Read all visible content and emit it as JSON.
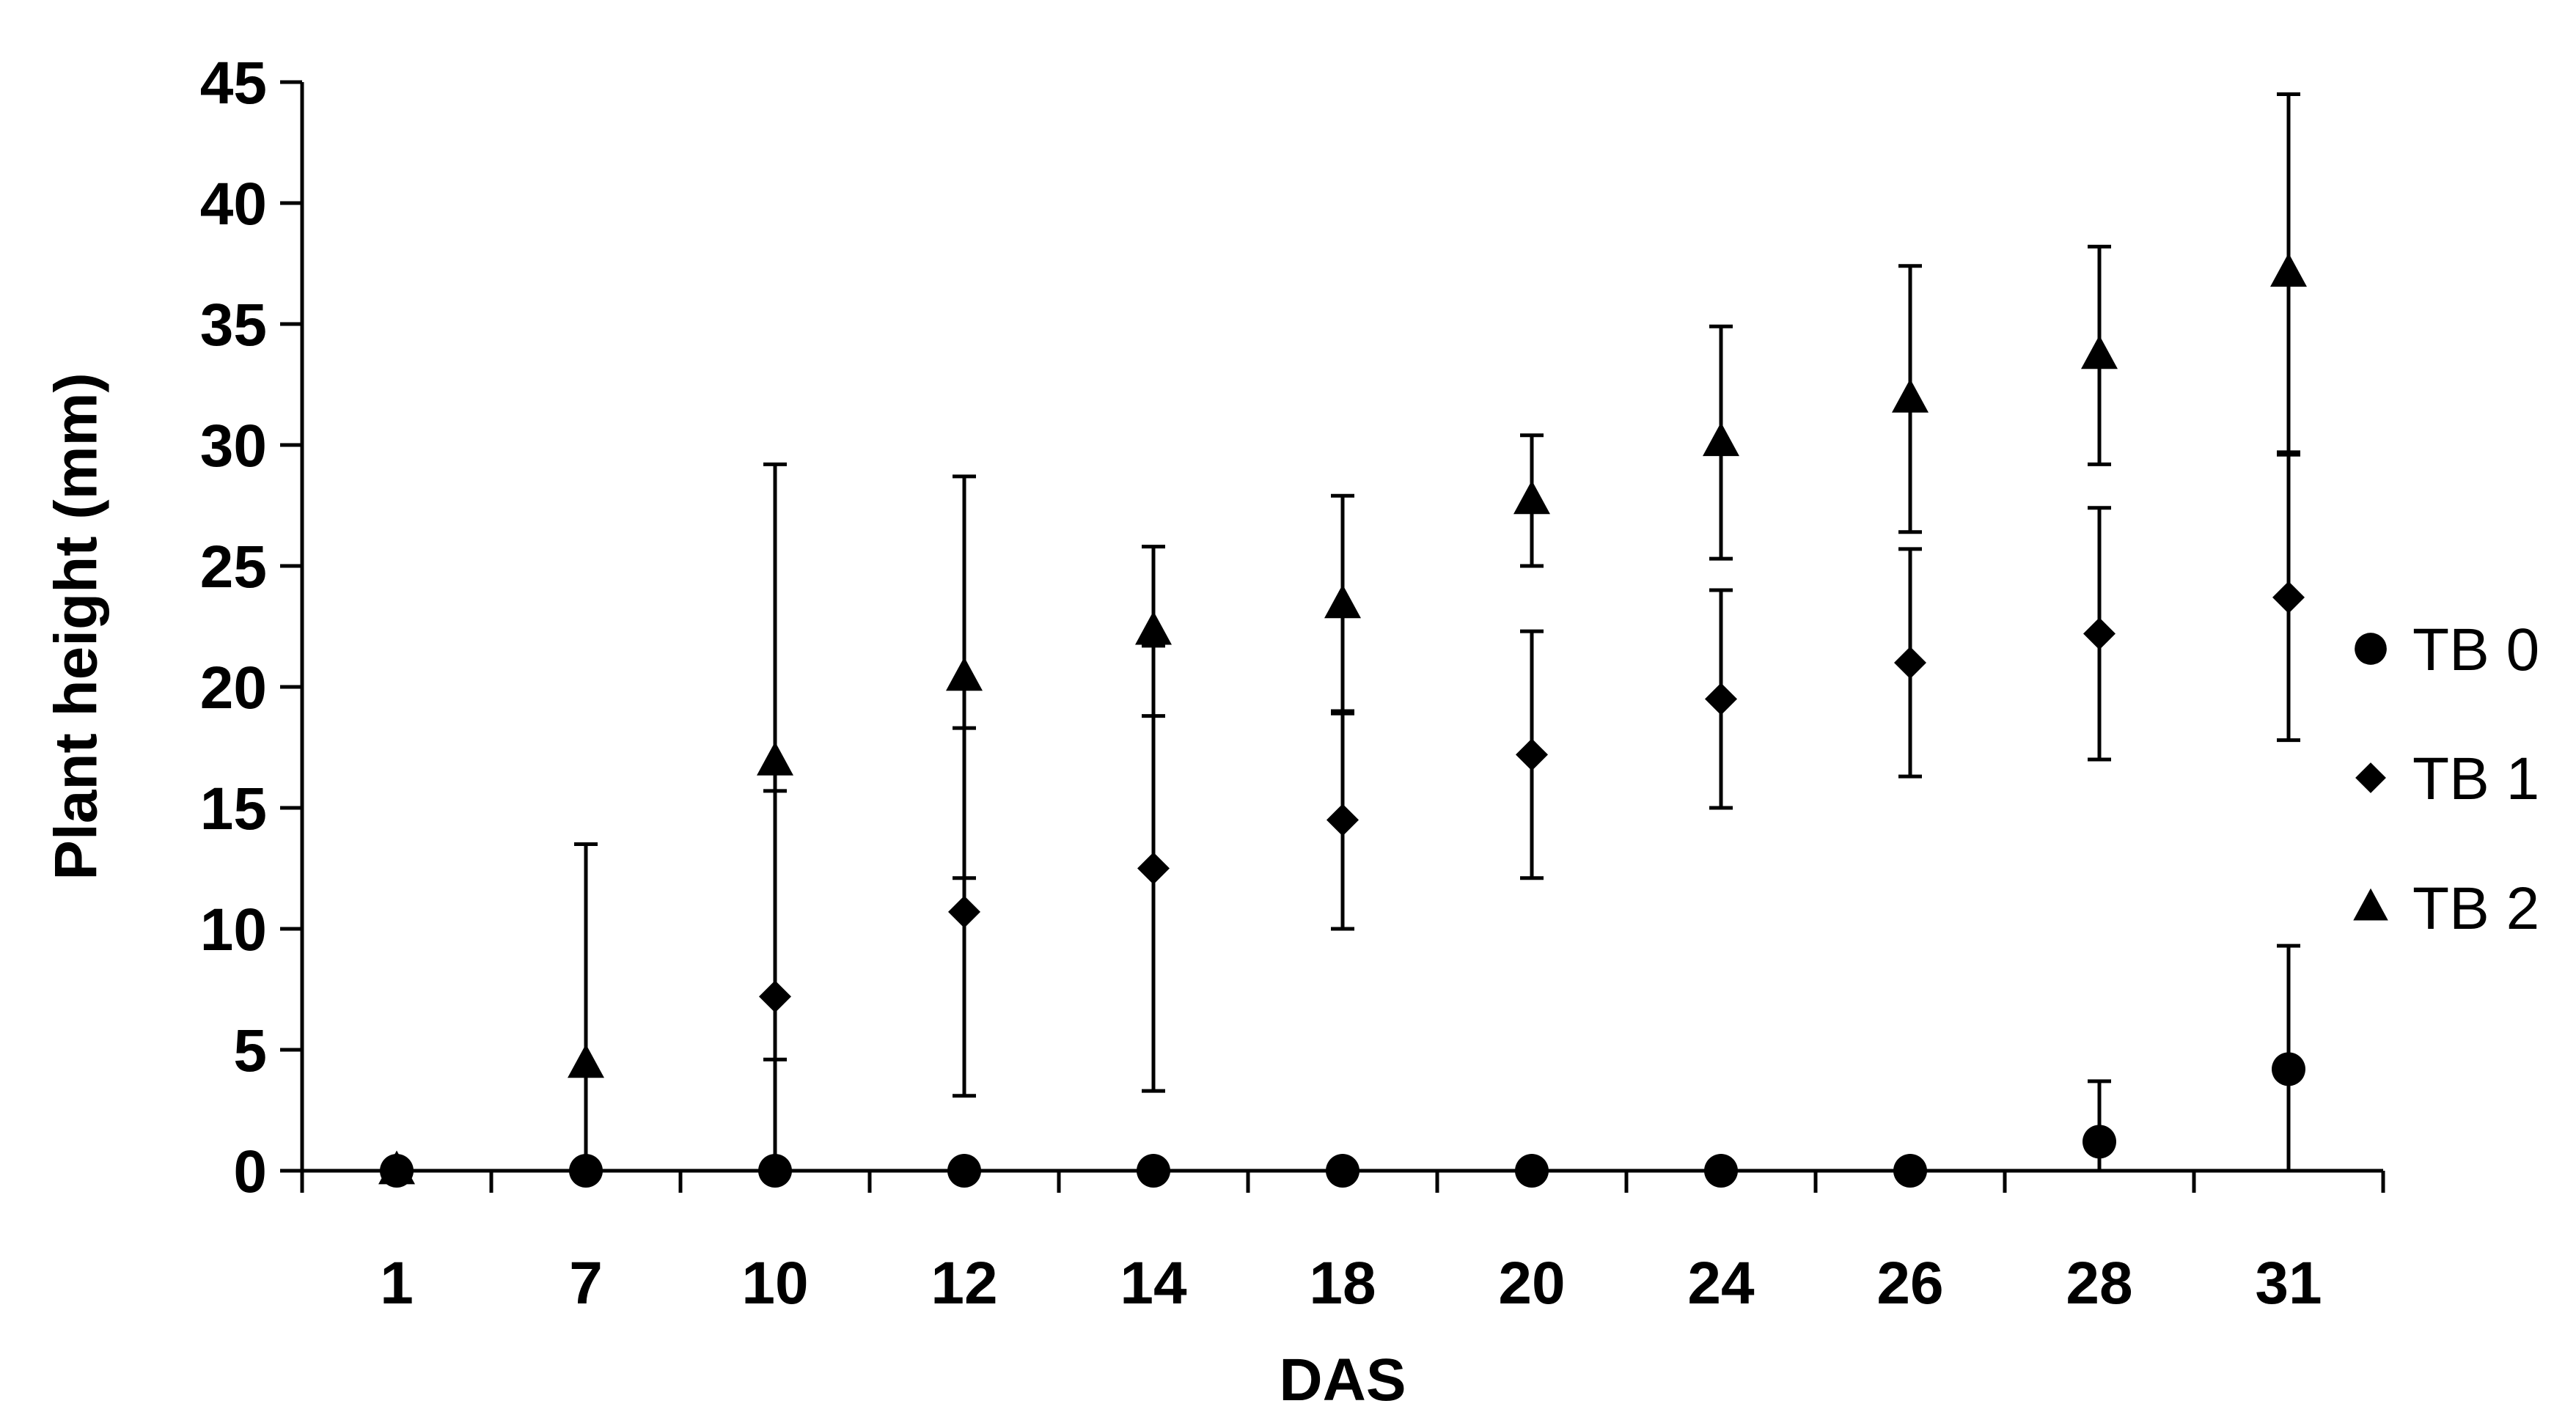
{
  "chart_data": {
    "type": "scatter",
    "title": "",
    "xlabel": "DAS",
    "ylabel": "Plant height (mm)",
    "categories": [
      "1",
      "7",
      "10",
      "12",
      "14",
      "18",
      "20",
      "24",
      "26",
      "28",
      "31"
    ],
    "ylim": [
      0,
      45
    ],
    "yticks": [
      0,
      5,
      10,
      15,
      20,
      25,
      30,
      35,
      40,
      45
    ],
    "grid": false,
    "legend_position": "right",
    "error_bars": true,
    "series": [
      {
        "name": "TB 0",
        "marker": "circle",
        "color": "#000000",
        "values": [
          0,
          0,
          0,
          0,
          0,
          0,
          0,
          0,
          0,
          1.2,
          4.2
        ],
        "error": [
          0,
          0,
          0,
          0,
          0,
          0,
          0,
          0,
          0,
          2.5,
          5.1
        ]
      },
      {
        "name": "TB 1",
        "marker": "diamond",
        "color": "#000000",
        "values": [
          0,
          0,
          7.2,
          10.7,
          12.5,
          14.5,
          17.2,
          19.5,
          21.0,
          22.2,
          23.7
        ],
        "error": [
          0,
          0,
          8.5,
          7.6,
          9.2,
          4.5,
          5.1,
          4.5,
          4.7,
          5.2,
          5.9
        ]
      },
      {
        "name": "TB 2",
        "marker": "triangle",
        "color": "#000000",
        "values": [
          0,
          4.4,
          16.9,
          20.4,
          22.3,
          23.4,
          27.7,
          30.1,
          31.9,
          33.7,
          37.1
        ],
        "error": [
          0,
          9.1,
          12.3,
          8.3,
          3.5,
          4.5,
          2.7,
          4.8,
          5.5,
          4.5,
          7.4
        ]
      }
    ]
  }
}
